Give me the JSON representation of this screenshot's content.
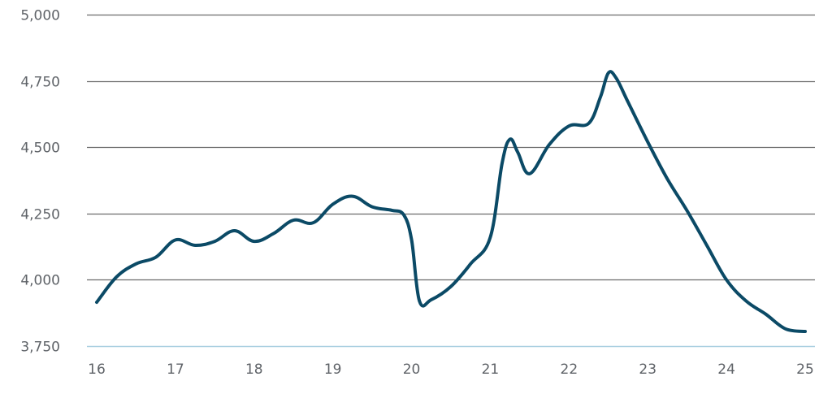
{
  "chart_data": {
    "type": "line",
    "title": "",
    "xlabel": "",
    "ylabel": "",
    "xlim": [
      16,
      25
    ],
    "ylim": [
      3750,
      5000
    ],
    "x_ticks": [
      {
        "value": 16,
        "label": "16"
      },
      {
        "value": 17,
        "label": "17"
      },
      {
        "value": 18,
        "label": "18"
      },
      {
        "value": 19,
        "label": "19"
      },
      {
        "value": 20,
        "label": "20"
      },
      {
        "value": 21,
        "label": "21"
      },
      {
        "value": 22,
        "label": "22"
      },
      {
        "value": 23,
        "label": "23"
      },
      {
        "value": 24,
        "label": "24"
      },
      {
        "value": 25,
        "label": "25"
      }
    ],
    "y_ticks": [
      {
        "value": 3750,
        "label": "3,750"
      },
      {
        "value": 4000,
        "label": "4,000"
      },
      {
        "value": 4250,
        "label": "4,250"
      },
      {
        "value": 4500,
        "label": "4,500"
      },
      {
        "value": 4750,
        "label": "4,750"
      },
      {
        "value": 5000,
        "label": "5,000"
      }
    ],
    "grid": true,
    "baseline_color": "#a9cfe0",
    "grid_color": "#6b6b6b",
    "series": [
      {
        "color": "#0b4a66",
        "x": [
          16,
          16.25,
          16.5,
          16.75,
          17,
          17.25,
          17.5,
          17.75,
          18,
          18.25,
          18.5,
          18.75,
          19,
          19.25,
          19.5,
          19.75,
          19.9,
          20,
          20.1,
          20.25,
          20.5,
          20.75,
          21,
          21.15,
          21.25,
          21.35,
          21.5,
          21.75,
          22,
          22.25,
          22.4,
          22.5,
          22.6,
          22.75,
          23,
          23.25,
          23.5,
          23.75,
          24,
          24.25,
          24.5,
          24.75,
          25
        ],
        "y": [
          3915,
          4010,
          4060,
          4085,
          4150,
          4130,
          4145,
          4185,
          4145,
          4175,
          4225,
          4215,
          4285,
          4315,
          4275,
          4262,
          4245,
          4150,
          3920,
          3925,
          3975,
          4060,
          4160,
          4440,
          4530,
          4480,
          4400,
          4510,
          4580,
          4590,
          4690,
          4780,
          4760,
          4670,
          4520,
          4380,
          4260,
          4130,
          4000,
          3920,
          3870,
          3815,
          3805
        ]
      }
    ]
  }
}
